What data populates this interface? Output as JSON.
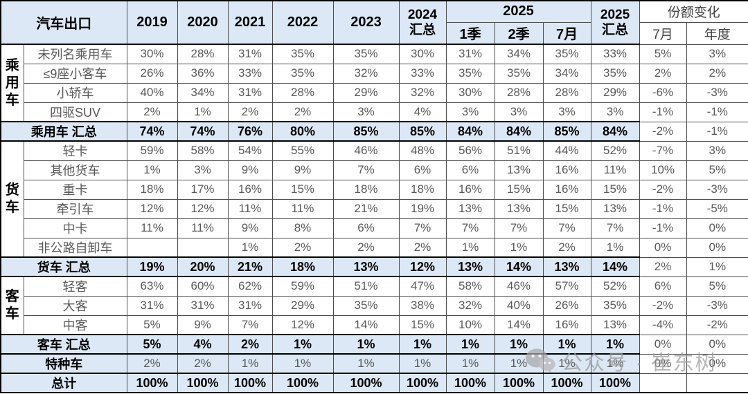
{
  "colors": {
    "header_blue": "#dce8f5",
    "summary_blue": "#dce8f5",
    "data_text_gray": "#595959",
    "bold_text": "#000000",
    "thin_border": "#4d4d4d",
    "thick_border": "#000000",
    "watermark_gray": "#9b9b9b"
  },
  "watermark": {
    "icon": "wechat-icon",
    "text": "公众号 · 崔东树"
  },
  "chart_data": {
    "type": "table",
    "title": "汽车出口",
    "header": {
      "corner": "汽车出口",
      "y2019": "2019",
      "y2020": "2020",
      "y2021": "2021",
      "y2022": "2022",
      "y2023": "2023",
      "y2024_line1": "2024",
      "y2024_line2": "汇总",
      "y2025_group": "2025",
      "q1": "1季",
      "q2": "2季",
      "m7": "7月",
      "y2025t_line1": "2025",
      "y2025t_line2": "汇总",
      "share_group": "份额变化",
      "share_m7": "7月",
      "share_year": "年度"
    },
    "column_keys": [
      "2019",
      "2020",
      "2021",
      "2022",
      "2023",
      "2024汇总",
      "2025 1季",
      "2025 2季",
      "2025 7月",
      "2025汇总",
      "份额变化 7月",
      "份额变化 年度"
    ],
    "rows": [
      {
        "kind": "data",
        "group": {
          "label": "乘用车",
          "span": 4
        },
        "label": "未列名乘用车",
        "values": [
          "30%",
          "28%",
          "31%",
          "35%",
          "35%",
          "30%",
          "31%",
          "34%",
          "35%",
          "33%",
          "5%",
          "3%"
        ]
      },
      {
        "kind": "data",
        "label": "≤9座小客车",
        "values": [
          "26%",
          "36%",
          "33%",
          "35%",
          "32%",
          "33%",
          "35%",
          "35%",
          "34%",
          "35%",
          "2%",
          "2%"
        ]
      },
      {
        "kind": "data",
        "label": "小轿车",
        "values": [
          "40%",
          "34%",
          "31%",
          "28%",
          "29%",
          "32%",
          "30%",
          "28%",
          "28%",
          "29%",
          "-6%",
          "-3%"
        ]
      },
      {
        "kind": "data",
        "label": "四驱SUV",
        "values": [
          "2%",
          "1%",
          "2%",
          "2%",
          "3%",
          "4%",
          "3%",
          "3%",
          "3%",
          "3%",
          "-1%",
          "-1%"
        ]
      },
      {
        "kind": "summary",
        "label": "乘用车 汇总",
        "values": [
          "74%",
          "74%",
          "76%",
          "80%",
          "85%",
          "85%",
          "84%",
          "84%",
          "85%",
          "84%",
          "-2%",
          "-1%"
        ]
      },
      {
        "kind": "data",
        "group": {
          "label": "货车",
          "span": 6
        },
        "label": "轻卡",
        "values": [
          "59%",
          "58%",
          "54%",
          "55%",
          "46%",
          "48%",
          "56%",
          "51%",
          "44%",
          "52%",
          "-7%",
          "3%"
        ]
      },
      {
        "kind": "data",
        "label": "其他货车",
        "values": [
          "1%",
          "3%",
          "9%",
          "9%",
          "7%",
          "6%",
          "6%",
          "13%",
          "16%",
          "11%",
          "10%",
          "5%"
        ]
      },
      {
        "kind": "data",
        "label": "重卡",
        "values": [
          "18%",
          "17%",
          "16%",
          "15%",
          "18%",
          "18%",
          "16%",
          "15%",
          "16%",
          "15%",
          "-2%",
          "-3%"
        ]
      },
      {
        "kind": "data",
        "label": "牵引车",
        "values": [
          "12%",
          "12%",
          "11%",
          "11%",
          "21%",
          "19%",
          "13%",
          "13%",
          "15%",
          "13%",
          "-1%",
          "-5%"
        ]
      },
      {
        "kind": "data",
        "label": "中卡",
        "values": [
          "11%",
          "11%",
          "9%",
          "8%",
          "6%",
          "7%",
          "7%",
          "7%",
          "7%",
          "7%",
          "-1%",
          "0%"
        ]
      },
      {
        "kind": "data",
        "label": "非公路自卸车",
        "values": [
          "",
          "",
          "1%",
          "2%",
          "2%",
          "2%",
          "1%",
          "1%",
          "2%",
          "1%",
          "0%",
          "0%"
        ]
      },
      {
        "kind": "summary",
        "label": "货车 汇总",
        "values": [
          "19%",
          "20%",
          "21%",
          "18%",
          "13%",
          "12%",
          "13%",
          "14%",
          "13%",
          "14%",
          "2%",
          "1%"
        ]
      },
      {
        "kind": "data",
        "group": {
          "label": "客车",
          "span": 3
        },
        "label": "轻客",
        "values": [
          "63%",
          "60%",
          "62%",
          "59%",
          "51%",
          "47%",
          "58%",
          "46%",
          "57%",
          "52%",
          "6%",
          "5%"
        ]
      },
      {
        "kind": "data",
        "label": "大客",
        "values": [
          "31%",
          "31%",
          "31%",
          "29%",
          "35%",
          "38%",
          "32%",
          "40%",
          "26%",
          "35%",
          "-2%",
          "-3%"
        ]
      },
      {
        "kind": "data",
        "label": "中客",
        "values": [
          "5%",
          "9%",
          "7%",
          "12%",
          "14%",
          "15%",
          "10%",
          "14%",
          "16%",
          "13%",
          "-4%",
          "-2%"
        ]
      },
      {
        "kind": "summary",
        "label": "客车 汇总",
        "values": [
          "5%",
          "4%",
          "2%",
          "1%",
          "1%",
          "1%",
          "1%",
          "1%",
          "1%",
          "1%",
          "0%",
          "0%"
        ]
      },
      {
        "kind": "special",
        "label": "特种车",
        "values": [
          "2%",
          "2%",
          "1%",
          "1%",
          "1%",
          "1%",
          "1%",
          "1%",
          "1%",
          "1%",
          "0%",
          "0%"
        ]
      },
      {
        "kind": "total",
        "label": "总计",
        "values": [
          "100%",
          "100%",
          "100%",
          "100%",
          "100%",
          "100%",
          "100%",
          "100%",
          "100%",
          "100%",
          "",
          ""
        ]
      }
    ]
  }
}
